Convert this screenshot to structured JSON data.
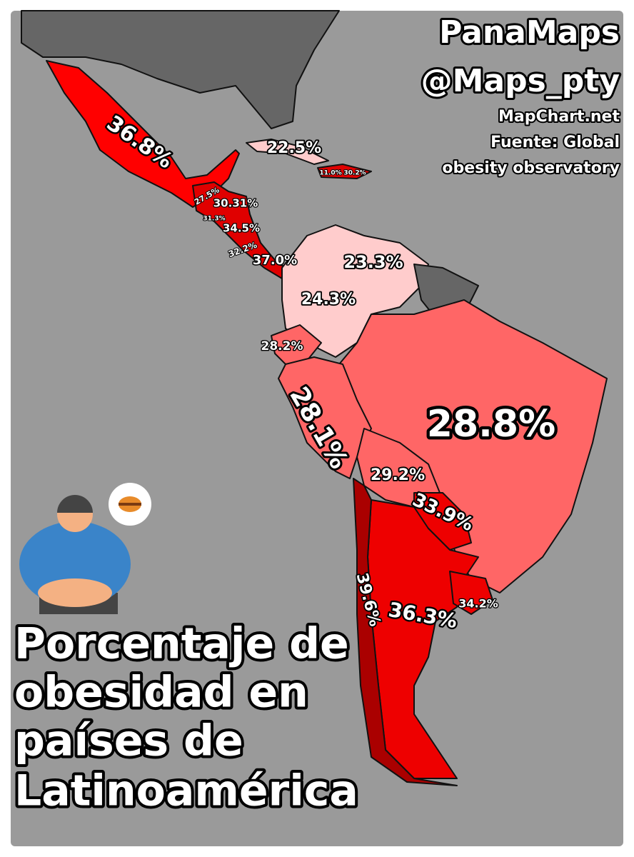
{
  "header": {
    "brand": "PanaMaps",
    "handle": "@Maps_pty",
    "credit": "MapChart.net",
    "source_lines": [
      "Fuente: Global",
      "obesity observatory"
    ]
  },
  "title_lines": [
    "Porcentaje de",
    "obesidad en",
    "países de",
    "Latinoamérica"
  ],
  "regions": [
    {
      "label": "36.8%"
    },
    {
      "label": "22.5%"
    },
    {
      "label": "11.0%"
    },
    {
      "label": "30.2%"
    },
    {
      "label": "27.5%"
    },
    {
      "label": "30.31%"
    },
    {
      "label": "31.3%"
    },
    {
      "label": "34.5%"
    },
    {
      "label": "32.2%"
    },
    {
      "label": "37.0%"
    },
    {
      "label": "28.2%"
    },
    {
      "label": "23.3%"
    },
    {
      "label": "24.3%"
    },
    {
      "label": "28.1%"
    },
    {
      "label": "28.8%"
    },
    {
      "label": "29.2%"
    },
    {
      "label": "33.9%"
    },
    {
      "label": "39.6%"
    },
    {
      "label": "36.3%"
    },
    {
      "label": "34.2%"
    }
  ]
}
